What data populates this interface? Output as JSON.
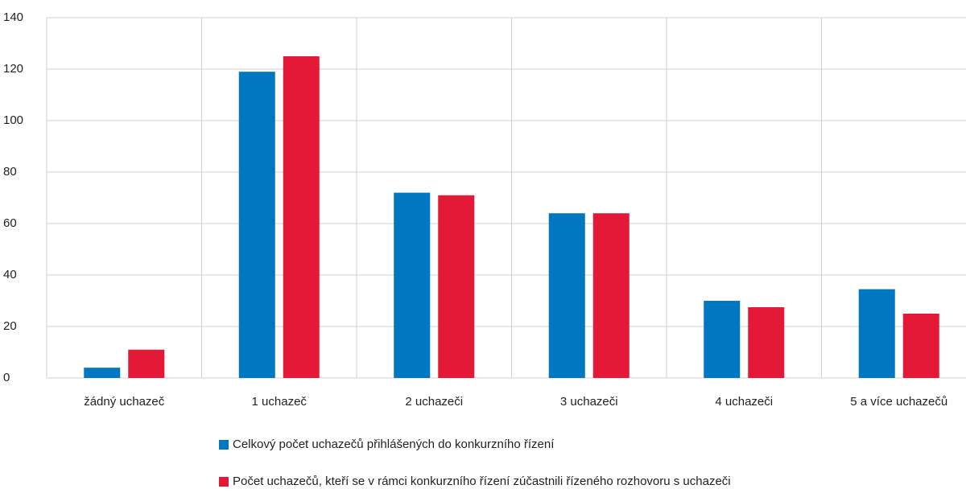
{
  "chart_data": {
    "type": "bar",
    "categories": [
      "žádný uchazeč",
      "1 uchazeč",
      "2 uchazeči",
      "3 uchazeči",
      "4 uchazeči",
      "5 a více uchazečů"
    ],
    "series": [
      {
        "name": "Celkový počet uchazečů přihlášených do konkurzního řízení",
        "color": "#0077c0",
        "values": [
          4,
          119,
          72,
          64,
          30,
          34.5
        ]
      },
      {
        "name": "Počet uchazečů, kteří se v rámci konkurzního řízení zúčastnili řízeného rozhovoru s uchazeči",
        "color": "#e31937",
        "values": [
          11,
          125,
          71,
          64,
          27.5,
          25
        ]
      }
    ],
    "ylim": [
      0,
      140
    ],
    "yticks": [
      0,
      20,
      40,
      60,
      80,
      100,
      120,
      140
    ],
    "grid": true,
    "legend": "bottom"
  }
}
